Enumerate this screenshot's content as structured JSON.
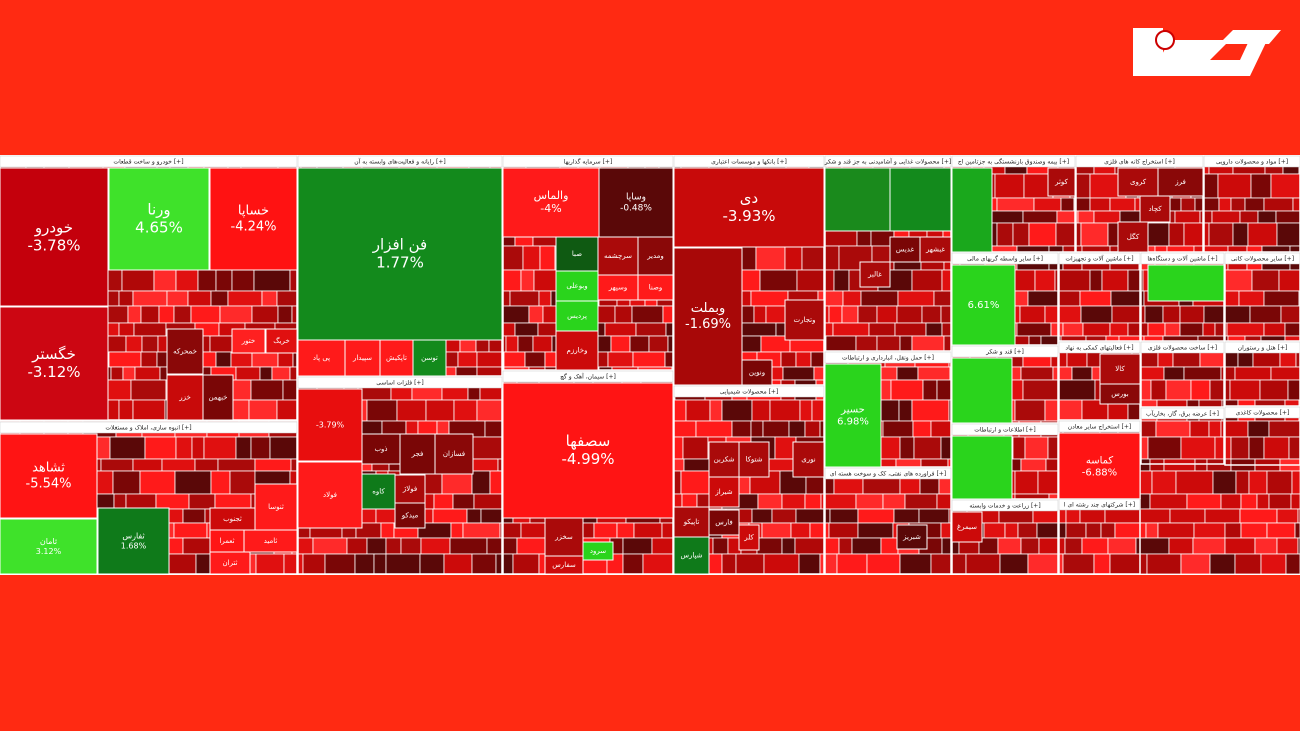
{
  "sectors": [
    {
      "title": "خودرو و ساخت قطعات [+]",
      "tiles": [
        {
          "name": "خودرو",
          "change": "-3.78%",
          "color": "#c4000c"
        },
        {
          "name": "خگستر",
          "change": "-3.12%",
          "color": "#cc0612"
        },
        {
          "name": "ورنا",
          "change": "4.65%",
          "color": "#3fe22a"
        },
        {
          "name": "خساپا",
          "change": "-4.24%",
          "color": "#ff1212"
        },
        {
          "name": "خمحرکه",
          "color": "#8a0808"
        },
        {
          "name": "ختور",
          "color": "#ff2020"
        },
        {
          "name": "خریگ",
          "color": "#e01010"
        },
        {
          "name": "خزر",
          "color": "#c80a0a"
        },
        {
          "name": "خبهمن",
          "color": "#7a0606"
        }
      ]
    },
    {
      "title": "انبوه سازی، املاک و مستغلات [+]",
      "tiles": [
        {
          "name": "ثشاهد",
          "change": "-5.54%",
          "color": "#ff1414"
        },
        {
          "name": "ثامان",
          "change": "3.12%",
          "color": "#3fe22a"
        },
        {
          "name": "ثفارس",
          "change": "1.68%",
          "color": "#0f7a1a"
        },
        {
          "name": "ثجنوب",
          "color": "#cc0a0a"
        },
        {
          "name": "ثنوسا",
          "color": "#ff1a1a"
        },
        {
          "name": "ثعمرا",
          "color": "#ff1515"
        },
        {
          "name": "ثامید",
          "color": "#ff1a1a"
        },
        {
          "name": "ثتران",
          "color": "#ff1a1a"
        }
      ]
    },
    {
      "title": "رایانه و فعالیت‌های وابسته به آن [+]",
      "tiles": [
        {
          "name": "فن افزار",
          "change": "1.77%",
          "color": "#138a1c"
        },
        {
          "name": "توسن",
          "color": "#138a1c"
        },
        {
          "name": "تاپکیش",
          "color": "#ff1a1a"
        },
        {
          "name": "سپیدار",
          "color": "#ff1a1a"
        },
        {
          "name": "پی پاد",
          "color": "#ff1a1a"
        }
      ]
    },
    {
      "title": "فلزات اساسی [+]",
      "tiles": [
        {
          "change": "-3.79%",
          "color": "#e80e0e"
        },
        {
          "name": "ذوب",
          "color": "#7a0606"
        },
        {
          "name": "کاوه",
          "color": "#0f7a1a"
        },
        {
          "name": "فجر",
          "color": "#7a0606"
        },
        {
          "name": "فسازان",
          "color": "#8a0808"
        },
        {
          "name": "فولاژ",
          "color": "#aa0a0a"
        },
        {
          "name": "میدکو",
          "color": "#7a0606"
        },
        {
          "name": "فولاد",
          "color": "#ff1a1a"
        },
        {
          "color": "#137a18"
        }
      ]
    },
    {
      "title": "سرمایه گذاریها [+]",
      "tiles": [
        {
          "name": "والماس",
          "change": "-4%",
          "color": "#ff1a1a"
        },
        {
          "name": "وساپا",
          "change": "-0.48%",
          "color": "#5a0808"
        },
        {
          "name": "صبا",
          "color": "#0f5a12"
        },
        {
          "name": "سرچشمه",
          "color": "#aa0a0a"
        },
        {
          "name": "ومدیر",
          "color": "#8a0808"
        },
        {
          "name": "وبوعلی",
          "color": "#2ad41c"
        },
        {
          "name": "پردیس",
          "color": "#2ad41c"
        },
        {
          "name": "وسپهر",
          "color": "#ff1a1a"
        },
        {
          "name": "وصنا",
          "color": "#ff1a1a"
        },
        {
          "name": "وخارزم",
          "color": "#cc0a0a"
        }
      ]
    },
    {
      "title": "سیمان، آهک و گچ [+]",
      "tiles": [
        {
          "name": "سصفها",
          "change": "-4.99%",
          "color": "#ff1414"
        },
        {
          "name": "سخزر",
          "color": "#aa0a0a"
        },
        {
          "name": "سفارس",
          "color": "#cc0a0a"
        },
        {
          "name": "سرود",
          "color": "#2ad41c"
        }
      ]
    },
    {
      "title": "بانکها و موسسات اعتباری [+]",
      "tiles": [
        {
          "name": "دی",
          "change": "-3.93%",
          "color": "#c80a0a"
        },
        {
          "name": "وبملت",
          "change": "-1.69%",
          "color": "#a80808"
        },
        {
          "name": "وتجارت",
          "color": "#aa0a0a"
        },
        {
          "name": "ونوین",
          "color": "#7a0606"
        }
      ]
    },
    {
      "title": "محصولات شیمیایی [+]",
      "tiles": [
        {
          "name": "شکربن",
          "color": "#aa0a0a"
        },
        {
          "name": "شتوکا",
          "color": "#aa0a0a"
        },
        {
          "name": "نوری",
          "color": "#aa0a0a"
        },
        {
          "name": "شیراز",
          "color": "#cc0a0a"
        },
        {
          "name": "تاپیکو",
          "color": "#aa0a0a"
        },
        {
          "name": "شپارس",
          "color": "#0f7a1a"
        },
        {
          "name": "فارس",
          "color": "#7a0606"
        },
        {
          "name": "کلر",
          "color": "#cc0a0a"
        }
      ]
    },
    {
      "title": "محصولات غذایی و آشامیدنی به جز قند و شکر [+]",
      "tiles": [
        {
          "color": "#1a8a1c"
        },
        {
          "color": "#138a1c"
        },
        {
          "name": "غبشهر",
          "color": "#aa0a0a"
        },
        {
          "name": "غدیس",
          "color": "#7a0606"
        },
        {
          "name": "غالبر",
          "color": "#aa0a0a"
        }
      ]
    },
    {
      "title": "حمل ونقل، انبارداری و ارتباطات [+]",
      "tiles": [
        {
          "name": "حسیر",
          "change": "6.98%",
          "color": "#2ad41c"
        }
      ]
    },
    {
      "title": "فراورده های نفتی، کک و سوخت هسته ای [+]",
      "tiles": [
        {
          "name": "شبریز",
          "color": "#5a0808"
        }
      ]
    },
    {
      "title": "بیمه وصندوق بازنشستگی به جزتامین اج [+]",
      "tiles": [
        {
          "color": "#1aa81c"
        },
        {
          "name": "کوثر",
          "color": "#aa0a0a"
        }
      ]
    },
    {
      "title": "سایر واسطه گریهای مالی [+]",
      "tiles": [
        {
          "change": "6.61%",
          "color": "#2ad41c"
        }
      ]
    },
    {
      "title": "قند و شکر [+]",
      "tiles": [
        {
          "color": "#2ad41c"
        }
      ]
    },
    {
      "title": "اطلاعات و ارتباطات [+]",
      "tiles": [
        {
          "color": "#2ad41c"
        }
      ]
    },
    {
      "title": "زراعت و خدمات وابسته [+]",
      "tiles": [
        {
          "name": "سیمرغ",
          "color": "#cc0a0a"
        }
      ]
    },
    {
      "title": "استخراج کانه های فلزی [+]",
      "tiles": [
        {
          "name": "کروی",
          "color": "#aa0a0a"
        },
        {
          "name": "فرز",
          "color": "#8a0808"
        },
        {
          "name": "کچاد",
          "color": "#aa0a0a"
        },
        {
          "name": "کگل",
          "color": "#aa0a0a"
        }
      ]
    },
    {
      "title": "مواد و محصولات دارویی [+]",
      "tiles": []
    },
    {
      "title": "ماشین آلات و تجهیزات [+]",
      "tiles": []
    },
    {
      "title": "ماشین آلات و دستگاه‌ها [+]",
      "tiles": [
        {
          "color": "#2ad41c"
        }
      ]
    },
    {
      "title": "سایر محصولات کانی [+]",
      "tiles": []
    },
    {
      "title": "فعالیتهای کمکی به نهاد [+]",
      "tiles": [
        {
          "name": "کالا",
          "color": "#aa0a0a"
        },
        {
          "name": "بورس",
          "color": "#8a0808"
        }
      ]
    },
    {
      "title": "ساخت محصولات فلزی [+]",
      "tiles": []
    },
    {
      "title": "هتل و رستوران [+]",
      "tiles": []
    },
    {
      "title": "استخراج سایر معادن [+]",
      "tiles": [
        {
          "name": "کماسه",
          "change": "-6.88%",
          "color": "#ff1414"
        }
      ]
    },
    {
      "title": "محصولات کاغذی [+]",
      "tiles": []
    },
    {
      "title": "عرضه برق، گاز، بخاریآب [+]",
      "tiles": []
    },
    {
      "title": "شرکتهای چند رشته ای ا [+]",
      "tiles": []
    }
  ]
}
